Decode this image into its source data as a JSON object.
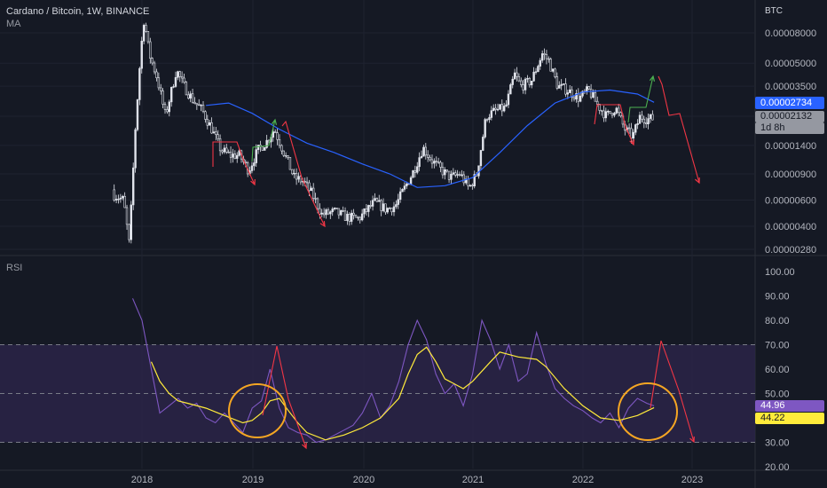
{
  "header": {
    "symbol_line": "Cardano / Bitcoin, 1W, BINANCE",
    "indicator": "MA",
    "axis_unit": "BTC"
  },
  "price_badges": {
    "ma_value": "0.00002734",
    "last_price": "0.00002132",
    "countdown": "1d 8h",
    "ma_color": "#2962ff",
    "last_color": "#9598a1"
  },
  "rsi_panel": {
    "title": "RSI",
    "rsi_value": "44.96",
    "ma_value": "44.22",
    "rsi_color": "#7e57c2",
    "ma_color": "#ffeb3b"
  },
  "colors": {
    "background": "#151924",
    "rsi_band": "#2a2548",
    "candles": "#e0e3eb",
    "price_ma": "#2962ff",
    "drawing_red": "#f23645",
    "drawing_green": "#4caf50",
    "circle": "#f5a623"
  },
  "chart_data": [
    {
      "type": "candlestick",
      "title": "Cardano / Bitcoin, 1W, BINANCE",
      "scale": "log",
      "x_tick_labels": [
        "2018",
        "2019",
        "2020",
        "2021",
        "2022",
        "2023"
      ],
      "y_tick_labels": [
        "0.00008000",
        "0.00005000",
        "0.00003500",
        "0.00002200",
        "0.00001400",
        "0.00000900",
        "0.00000600",
        "0.00000400",
        "0.00000280"
      ],
      "ylim": [
        2.6e-06,
        0.00012
      ],
      "price_path": [
        [
          "2017-10-01",
          6.5e-06
        ],
        [
          "2017-11-01",
          6e-06
        ],
        [
          "2017-11-20",
          3e-06
        ],
        [
          "2017-12-10",
          1.8e-05
        ],
        [
          "2017-12-28",
          6e-05
        ],
        [
          "2018-01-08",
          0.0001
        ],
        [
          "2018-01-25",
          5.8e-05
        ],
        [
          "2018-02-20",
          4e-05
        ],
        [
          "2018-03-20",
          2.2e-05
        ],
        [
          "2018-04-25",
          4.5e-05
        ],
        [
          "2018-05-20",
          3.5e-05
        ],
        [
          "2018-06-20",
          2.8e-05
        ],
        [
          "2018-07-20",
          2.4e-05
        ],
        [
          "2018-08-20",
          1.8e-05
        ],
        [
          "2018-09-20",
          1.3e-05
        ],
        [
          "2018-10-20",
          1.2e-05
        ],
        [
          "2018-11-20",
          1.2e-05
        ],
        [
          "2018-12-20",
          9.5e-06
        ],
        [
          "2019-01-20",
          1.3e-05
        ],
        [
          "2019-02-20",
          1.5e-05
        ],
        [
          "2019-03-15",
          1.8e-05
        ],
        [
          "2019-04-20",
          1.2e-05
        ],
        [
          "2019-05-20",
          8.5e-06
        ],
        [
          "2019-06-20",
          8e-06
        ],
        [
          "2019-07-20",
          6.5e-06
        ],
        [
          "2019-08-20",
          4.8e-06
        ],
        [
          "2019-10-01",
          5e-06
        ],
        [
          "2019-11-10",
          4.6e-06
        ],
        [
          "2019-12-20",
          4.5e-06
        ],
        [
          "2020-02-10",
          5.8e-06
        ],
        [
          "2020-03-20",
          5.2e-06
        ],
        [
          "2020-04-20",
          5.5e-06
        ],
        [
          "2020-06-20",
          9.5e-06
        ],
        [
          "2020-07-20",
          1.35e-05
        ],
        [
          "2020-08-20",
          1.1e-05
        ],
        [
          "2020-09-20",
          9.5e-06
        ],
        [
          "2020-10-20",
          8.5e-06
        ],
        [
          "2020-11-20",
          9e-06
        ],
        [
          "2020-12-20",
          7.2e-06
        ],
        [
          "2021-01-15",
          9e-06
        ],
        [
          "2021-02-15",
          2.2e-05
        ],
        [
          "2021-03-20",
          2.4e-05
        ],
        [
          "2021-04-20",
          2.5e-05
        ],
        [
          "2021-05-20",
          4.2e-05
        ],
        [
          "2021-06-10",
          3.5e-05
        ],
        [
          "2021-07-15",
          3.8e-05
        ],
        [
          "2021-08-20",
          5.8e-05
        ],
        [
          "2021-09-10",
          5.2e-05
        ],
        [
          "2021-10-10",
          3.5e-05
        ],
        [
          "2021-11-10",
          3.3e-05
        ],
        [
          "2021-12-20",
          2.9e-05
        ],
        [
          "2022-01-20",
          3.3e-05
        ],
        [
          "2022-02-20",
          2.6e-05
        ],
        [
          "2022-03-20",
          2.2e-05
        ],
        [
          "2022-04-20",
          2.5e-05
        ],
        [
          "2022-05-20",
          1.8e-05
        ],
        [
          "2022-06-15",
          1.6e-05
        ],
        [
          "2022-07-10",
          2.2e-05
        ],
        [
          "2022-08-01",
          2.1e-05
        ],
        [
          "2022-08-25",
          2.13e-05
        ]
      ],
      "series": [
        {
          "type": "line",
          "values": [
            [
              "2018-08-01",
              2.6e-05
            ],
            [
              "2018-10-15",
              2.7e-05
            ],
            [
              "2019-01-01",
              2.3e-05
            ],
            [
              "2019-04-01",
              1.8e-05
            ],
            [
              "2019-07-01",
              1.45e-05
            ],
            [
              "2019-10-01",
              1.25e-05
            ],
            [
              "2020-01-01",
              1.05e-05
            ],
            [
              "2020-04-01",
              9e-06
            ],
            [
              "2020-07-01",
              7.3e-06
            ],
            [
              "2020-10-01",
              7.5e-06
            ],
            [
              "2021-01-01",
              8.5e-06
            ],
            [
              "2021-04-01",
              1.25e-05
            ],
            [
              "2021-07-01",
              1.9e-05
            ],
            [
              "2021-10-01",
              2.7e-05
            ],
            [
              "2022-01-01",
              3.2e-05
            ],
            [
              "2022-04-01",
              3.3e-05
            ],
            [
              "2022-07-01",
              3.1e-05
            ],
            [
              "2022-08-25",
              2.73e-05
            ]
          ]
        }
      ]
    },
    {
      "type": "line",
      "title": "RSI",
      "x_tick_labels": [
        "2018",
        "2019",
        "2020",
        "2021",
        "2022",
        "2023"
      ],
      "y_tick_labels": [
        "100.00",
        "90.00",
        "80.00",
        "70.00",
        "60.00",
        "50.00",
        "40.00",
        "30.00",
        "20.00"
      ],
      "ylim": [
        20,
        100
      ],
      "bands": [
        30,
        50,
        70
      ],
      "series": [
        {
          "type": "line",
          "values": [
            [
              "2017-12-01",
              89
            ],
            [
              "2018-01-01",
              80
            ],
            [
              "2018-02-01",
              60
            ],
            [
              "2018-03-01",
              42
            ],
            [
              "2018-04-01",
              45
            ],
            [
              "2018-05-01",
              48
            ],
            [
              "2018-06-01",
              44
            ],
            [
              "2018-07-01",
              46
            ],
            [
              "2018-08-01",
              40
            ],
            [
              "2018-09-01",
              38
            ],
            [
              "2018-10-01",
              42
            ],
            [
              "2018-11-01",
              38
            ],
            [
              "2018-12-01",
              34
            ],
            [
              "2019-01-01",
              44
            ],
            [
              "2019-02-01",
              47
            ],
            [
              "2019-03-01",
              60
            ],
            [
              "2019-04-01",
              44
            ],
            [
              "2019-05-01",
              36
            ],
            [
              "2019-06-01",
              34
            ],
            [
              "2019-07-01",
              33
            ],
            [
              "2019-08-01",
              30
            ],
            [
              "2019-09-01",
              31
            ],
            [
              "2019-10-01",
              33
            ],
            [
              "2019-11-01",
              35
            ],
            [
              "2019-12-01",
              37
            ],
            [
              "2020-01-01",
              42
            ],
            [
              "2020-02-01",
              50
            ],
            [
              "2020-03-01",
              40
            ],
            [
              "2020-04-01",
              45
            ],
            [
              "2020-05-01",
              55
            ],
            [
              "2020-06-01",
              70
            ],
            [
              "2020-07-01",
              80
            ],
            [
              "2020-08-01",
              72
            ],
            [
              "2020-09-01",
              58
            ],
            [
              "2020-10-01",
              50
            ],
            [
              "2020-11-01",
              54
            ],
            [
              "2020-12-01",
              45
            ],
            [
              "2021-01-01",
              58
            ],
            [
              "2021-02-01",
              80
            ],
            [
              "2021-03-01",
              72
            ],
            [
              "2021-04-01",
              60
            ],
            [
              "2021-05-01",
              70
            ],
            [
              "2021-06-01",
              55
            ],
            [
              "2021-07-01",
              58
            ],
            [
              "2021-08-01",
              75
            ],
            [
              "2021-09-01",
              62
            ],
            [
              "2021-10-01",
              52
            ],
            [
              "2021-11-01",
              48
            ],
            [
              "2021-12-01",
              45
            ],
            [
              "2022-01-01",
              43
            ],
            [
              "2022-02-01",
              40
            ],
            [
              "2022-03-01",
              38
            ],
            [
              "2022-04-01",
              42
            ],
            [
              "2022-05-01",
              36
            ],
            [
              "2022-06-01",
              44
            ],
            [
              "2022-07-01",
              48
            ],
            [
              "2022-08-01",
              46
            ],
            [
              "2022-08-25",
              44.96
            ]
          ]
        },
        {
          "type": "line",
          "values": [
            [
              "2018-02-01",
              63
            ],
            [
              "2018-03-01",
              55
            ],
            [
              "2018-04-01",
              50
            ],
            [
              "2018-05-01",
              47
            ],
            [
              "2018-06-01",
              46
            ],
            [
              "2018-08-01",
              44
            ],
            [
              "2018-10-01",
              41
            ],
            [
              "2018-12-01",
              38
            ],
            [
              "2019-01-01",
              39
            ],
            [
              "2019-02-01",
              42
            ],
            [
              "2019-03-01",
              47
            ],
            [
              "2019-04-01",
              48
            ],
            [
              "2019-05-01",
              43
            ],
            [
              "2019-06-01",
              38
            ],
            [
              "2019-07-01",
              34
            ],
            [
              "2019-09-01",
              31
            ],
            [
              "2019-11-01",
              33
            ],
            [
              "2020-01-01",
              36
            ],
            [
              "2020-03-01",
              40
            ],
            [
              "2020-05-01",
              48
            ],
            [
              "2020-06-01",
              58
            ],
            [
              "2020-07-01",
              66
            ],
            [
              "2020-08-01",
              69
            ],
            [
              "2020-09-01",
              63
            ],
            [
              "2020-10-01",
              56
            ],
            [
              "2020-12-01",
              52
            ],
            [
              "2021-01-01",
              55
            ],
            [
              "2021-03-01",
              63
            ],
            [
              "2021-04-01",
              67
            ],
            [
              "2021-06-01",
              65
            ],
            [
              "2021-08-01",
              64
            ],
            [
              "2021-09-01",
              61
            ],
            [
              "2021-11-01",
              52
            ],
            [
              "2022-01-01",
              45
            ],
            [
              "2022-03-01",
              40
            ],
            [
              "2022-05-01",
              39
            ],
            [
              "2022-07-01",
              41
            ],
            [
              "2022-08-25",
              44.22
            ]
          ]
        }
      ]
    }
  ]
}
